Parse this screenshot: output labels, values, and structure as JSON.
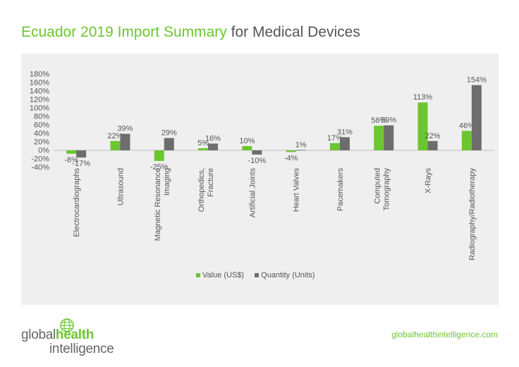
{
  "header": {
    "title_highlight": "Ecuador 2019 Import Summary",
    "title_rest": " for Medical Devices"
  },
  "footer": {
    "logo_part1": "global",
    "logo_part2": "health",
    "logo_part3": "intelligence",
    "website": "globalhealthintelligence.com"
  },
  "colors": {
    "value": "#6cc630",
    "quantity": "#6d6d6d",
    "accent": "#6cc630"
  },
  "chart_data": {
    "type": "bar",
    "categories": [
      "Electrocardiographs",
      "Ultrasound",
      "Magnetic Resonance Imaging",
      "Orthopedics, Fracture",
      "Artificial Joints",
      "Heart Valves",
      "Pacemakers",
      "Computed Tomography",
      "X-Rays",
      "Radiography/Radiotherapy"
    ],
    "series": [
      {
        "name": "Value (US$)",
        "values": [
          -8,
          22,
          -25,
          5,
          10,
          -4,
          17,
          58,
          113,
          46
        ]
      },
      {
        "name": "Quantity (Units)",
        "values": [
          -17,
          39,
          29,
          16,
          -10,
          1,
          31,
          59,
          22,
          154
        ]
      }
    ],
    "yticks": [
      "180%",
      "160%",
      "140%",
      "120%",
      "100%",
      "80%",
      "60%",
      "40%",
      "20%",
      "0%",
      "-20%",
      "-40%"
    ],
    "ylim": [
      -40,
      180
    ],
    "legend_position": "bottom",
    "grid": false
  }
}
